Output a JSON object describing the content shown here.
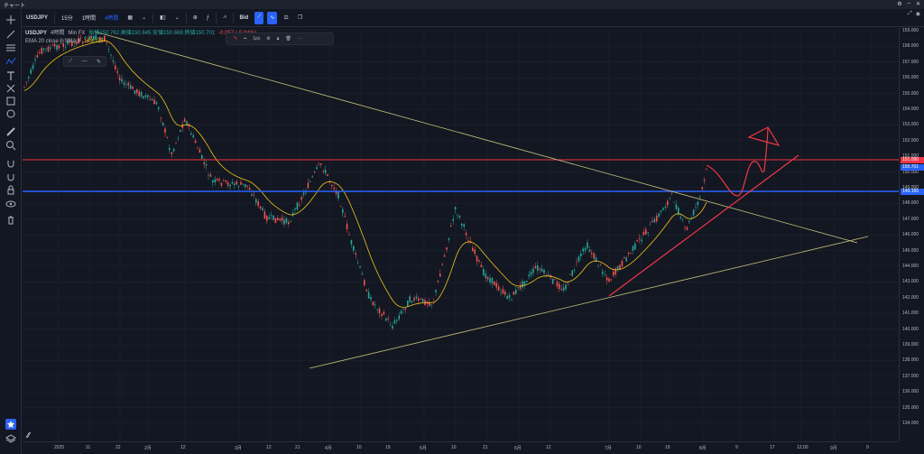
{
  "window": {
    "title": "チャート"
  },
  "toolbar": {
    "symbol": "USDJPY",
    "interval_1": "15分",
    "interval_2": "1時間",
    "interval_3": "4時間",
    "bid_label": "Bid"
  },
  "legend": {
    "symbol": "USDJPY",
    "interval": "4時間",
    "source": "Min FX",
    "ohlc": "始値150.762 高値150.845 安値150.668 終値150.701",
    "change": "-0.057 (-0.04%)",
    "ma_label": "EMA 20 close 0 SMA 9",
    "ma_value": "149.125"
  },
  "draw_toolbar": {
    "width_label": "1px"
  },
  "price_axis": {
    "ticks": [
      "159.000",
      "158.000",
      "157.000",
      "156.000",
      "155.000",
      "154.000",
      "153.000",
      "152.000",
      "151.000",
      "150.000",
      "149.000",
      "148.000",
      "147.000",
      "146.000",
      "145.000",
      "144.000",
      "143.000",
      "142.000",
      "141.000",
      "140.000",
      "139.000",
      "138.000",
      "137.000",
      "136.000",
      "135.000",
      "134.000"
    ],
    "labels": [
      {
        "text": "151.090",
        "color": "#f23645"
      },
      {
        "text": "150.701",
        "color": "#2962ff"
      },
      {
        "text": "149.165",
        "color": "#2962ff"
      }
    ]
  },
  "time_axis": {
    "ticks": [
      "2025",
      "11",
      "22",
      "2月",
      "12",
      "3月",
      "12",
      "21",
      "4月",
      "10",
      "19",
      "5月",
      "10",
      "21",
      "6月",
      "12",
      "7月",
      "10",
      "19",
      "8月",
      "9",
      "17",
      "12:00",
      "9月",
      "9"
    ]
  },
  "chart_data": {
    "type": "candlestick",
    "ylim": [
      134,
      159
    ],
    "colors": {
      "up": "#26a69a",
      "down": "#ef5350",
      "ema": "#f0c419",
      "resistance": "#f23645",
      "support": "#2962ff",
      "trend": "#c7c27a",
      "arrow": "#f23645"
    }
  }
}
